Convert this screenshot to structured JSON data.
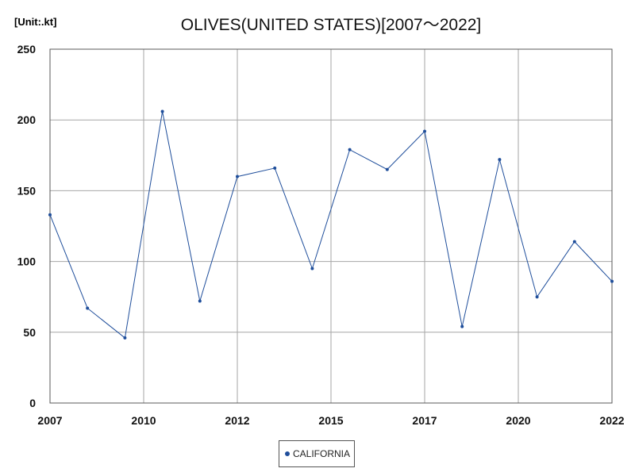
{
  "unit_label": "[Unit:.kt]",
  "title": "OLIVES(UNITED STATES)[2007～2022]",
  "colors": {
    "series": "#1f4e9b",
    "grid": "#a6a6a6",
    "frame": "#595959"
  },
  "chart_data": {
    "type": "line",
    "title": "OLIVES(UNITED STATES)[2007～2022]",
    "unit": "[Unit:.kt]",
    "xlim": [
      2007,
      2022
    ],
    "ylim": [
      0,
      250
    ],
    "x_tick_labels": [
      "2007",
      "2010",
      "2012",
      "2015",
      "2017",
      "2020",
      "2022"
    ],
    "y_ticks": [
      0,
      50,
      100,
      150,
      200,
      250
    ],
    "grid": true,
    "legend_position": "bottom-center",
    "x": [
      2007,
      2008,
      2009,
      2010,
      2011,
      2012,
      2013,
      2014,
      2015,
      2016,
      2017,
      2018,
      2019,
      2020,
      2021,
      2022
    ],
    "series": [
      {
        "name": "CALIFORNIA",
        "values": [
          133,
          67,
          46,
          206,
          72,
          160,
          166,
          95,
          179,
          165,
          192,
          54,
          172,
          75,
          114,
          86
        ]
      }
    ]
  }
}
